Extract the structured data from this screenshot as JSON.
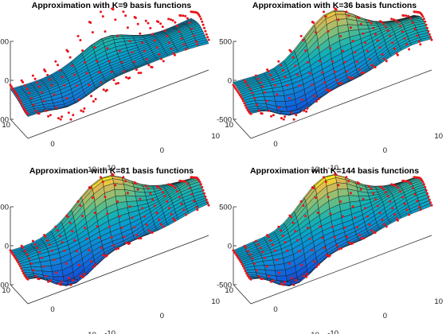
{
  "chart_data": [
    {
      "type": "surface",
      "title": "Approximation with K=9 basis functions",
      "basis_functions": 9,
      "z_ticks": [
        "500",
        "0",
        "-500"
      ],
      "x_ticks": [
        "10",
        "0",
        "-10"
      ],
      "y_ticks": [
        "10",
        "0",
        "-10"
      ],
      "zlim": [
        -500,
        500
      ],
      "xlim": [
        -10,
        10
      ],
      "ylim": [
        -10,
        10
      ],
      "overlay": "red data points",
      "colormap": "parula"
    },
    {
      "type": "surface",
      "title": "Approximation with K=36 basis functions",
      "basis_functions": 36,
      "z_ticks": [
        "500",
        "0",
        "-500"
      ],
      "x_ticks": [
        "10",
        "0",
        "-10"
      ],
      "y_ticks": [
        "10",
        "0",
        "-10"
      ],
      "zlim": [
        -500,
        500
      ],
      "xlim": [
        -10,
        10
      ],
      "ylim": [
        -10,
        10
      ],
      "overlay": "red data points",
      "colormap": "parula"
    },
    {
      "type": "surface",
      "title": "Approximation with K=81 basis functions",
      "basis_functions": 81,
      "z_ticks": [
        "500",
        "0",
        "-500"
      ],
      "x_ticks": [
        "10",
        "0",
        "-10"
      ],
      "y_ticks": [
        "10",
        "0",
        "-10"
      ],
      "zlim": [
        -500,
        500
      ],
      "xlim": [
        -10,
        10
      ],
      "ylim": [
        -10,
        10
      ],
      "overlay": "red data points",
      "colormap": "parula"
    },
    {
      "type": "surface",
      "title": "Approximation with K=144 basis functions",
      "basis_functions": 144,
      "z_ticks": [
        "500",
        "0",
        "-500"
      ],
      "x_ticks": [
        "10",
        "0",
        "-10"
      ],
      "y_ticks": [
        "10",
        "0",
        "-10"
      ],
      "zlim": [
        -500,
        500
      ],
      "xlim": [
        -10,
        10
      ],
      "ylim": [
        -10,
        10
      ],
      "overlay": "red data points",
      "colormap": "parula"
    }
  ],
  "colors": {
    "data_points": "#e8141a",
    "mesh_edges": "#1b1b1b",
    "axes": "#262626"
  }
}
